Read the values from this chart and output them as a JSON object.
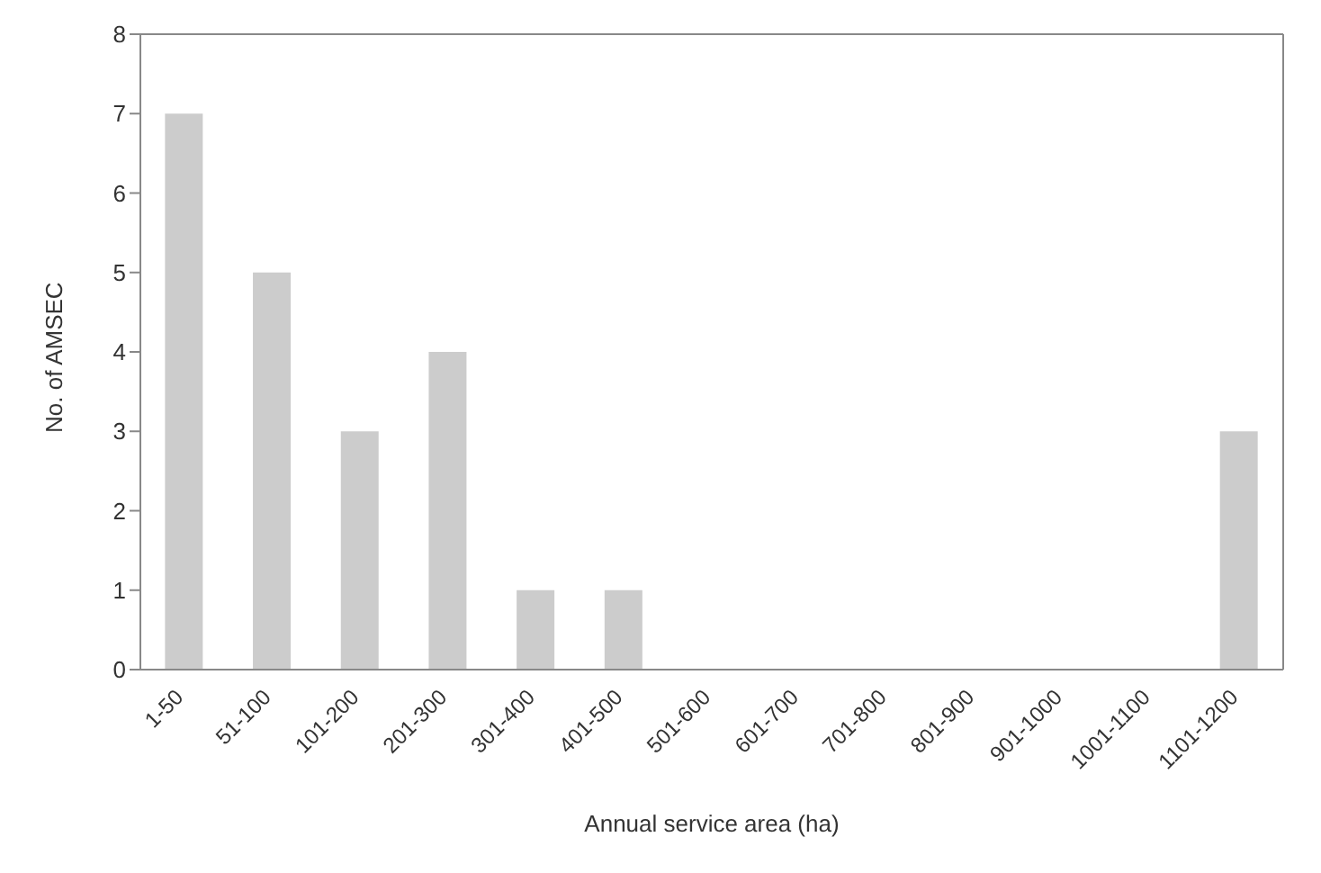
{
  "chart_data": {
    "type": "bar",
    "xlabel": "Annual service area (ha)",
    "ylabel": "No. of AMSEC",
    "categories": [
      "1-50",
      "51-100",
      "101-200",
      "201-300",
      "301-400",
      "401-500",
      "501-600",
      "601-700",
      "701-800",
      "801-900",
      "901-1000",
      "1001-1100",
      "1101-1200"
    ],
    "values": [
      7,
      5,
      3,
      4,
      1,
      1,
      0,
      0,
      0,
      0,
      0,
      0,
      3
    ],
    "color": "#cccccc",
    "ylim": [
      0,
      8
    ],
    "yticks": [
      0,
      1,
      2,
      3,
      4,
      5,
      6,
      7,
      8
    ]
  }
}
